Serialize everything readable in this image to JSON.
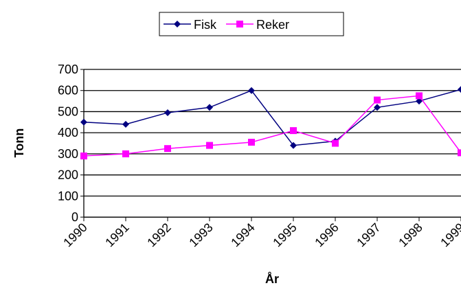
{
  "chart_data": {
    "type": "line",
    "categories": [
      "1990",
      "1991",
      "1992",
      "1993",
      "1994",
      "1995",
      "1996",
      "1997",
      "1998",
      "1999"
    ],
    "series": [
      {
        "name": "Fisk",
        "color": "#000080",
        "marker": "diamond",
        "values": [
          450,
          440,
          495,
          520,
          600,
          340,
          360,
          520,
          550,
          605
        ]
      },
      {
        "name": "Reker",
        "color": "#ff00ff",
        "marker": "square",
        "values": [
          290,
          300,
          325,
          340,
          355,
          410,
          350,
          555,
          575,
          305
        ]
      }
    ],
    "ylim": [
      0,
      700
    ],
    "yticks": [
      0,
      100,
      200,
      300,
      400,
      500,
      600,
      700
    ],
    "ylabel": "Tonn",
    "xlabel": "År",
    "grid": true,
    "legend": "top"
  }
}
